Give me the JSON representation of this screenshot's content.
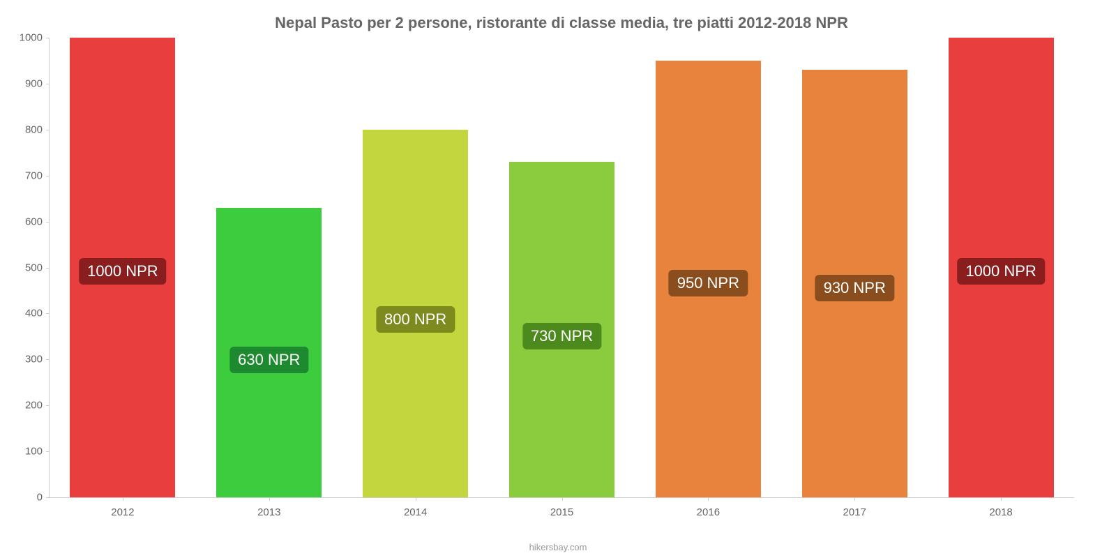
{
  "chart": {
    "type": "bar",
    "title": "Nepal Pasto per 2 persone, ristorante di classe media, tre piatti 2012-2018 NPR",
    "title_fontsize": 22,
    "title_color": "#666666",
    "background_color": "#ffffff",
    "axis_color": "#cccccc",
    "label_color": "#666666",
    "label_fontsize": 15,
    "ylim": [
      0,
      1000
    ],
    "ytick_step": 100,
    "yticks": [
      {
        "value": 0,
        "label": "0"
      },
      {
        "value": 100,
        "label": "100"
      },
      {
        "value": 200,
        "label": "200"
      },
      {
        "value": 300,
        "label": "300"
      },
      {
        "value": 400,
        "label": "400"
      },
      {
        "value": 500,
        "label": "500"
      },
      {
        "value": 600,
        "label": "600"
      },
      {
        "value": 700,
        "label": "700"
      },
      {
        "value": 800,
        "label": "800"
      },
      {
        "value": 900,
        "label": "900"
      },
      {
        "value": 1000,
        "label": "1000"
      }
    ],
    "bar_width_pct": 72,
    "bar_label_fontsize": 22,
    "bar_label_color": "#ffffff",
    "data": [
      {
        "category": "2012",
        "value": 1000,
        "label": "1000 NPR",
        "bar_color": "#e83e3e",
        "badge_color": "#8a1d1d"
      },
      {
        "category": "2013",
        "value": 630,
        "label": "630 NPR",
        "bar_color": "#3dcc3d",
        "badge_color": "#1d8a2f"
      },
      {
        "category": "2014",
        "value": 800,
        "label": "800 NPR",
        "bar_color": "#c3d63d",
        "badge_color": "#7d8a1d"
      },
      {
        "category": "2015",
        "value": 730,
        "label": "730 NPR",
        "bar_color": "#8acc3d",
        "badge_color": "#4d8a1d"
      },
      {
        "category": "2016",
        "value": 950,
        "label": "950 NPR",
        "bar_color": "#e8833e",
        "badge_color": "#8a4d1d"
      },
      {
        "category": "2017",
        "value": 930,
        "label": "930 NPR",
        "bar_color": "#e8833e",
        "badge_color": "#8a4d1d"
      },
      {
        "category": "2018",
        "value": 1000,
        "label": "1000 NPR",
        "bar_color": "#e83e3e",
        "badge_color": "#8a1d1d"
      }
    ],
    "footer": "hikersbay.com"
  }
}
